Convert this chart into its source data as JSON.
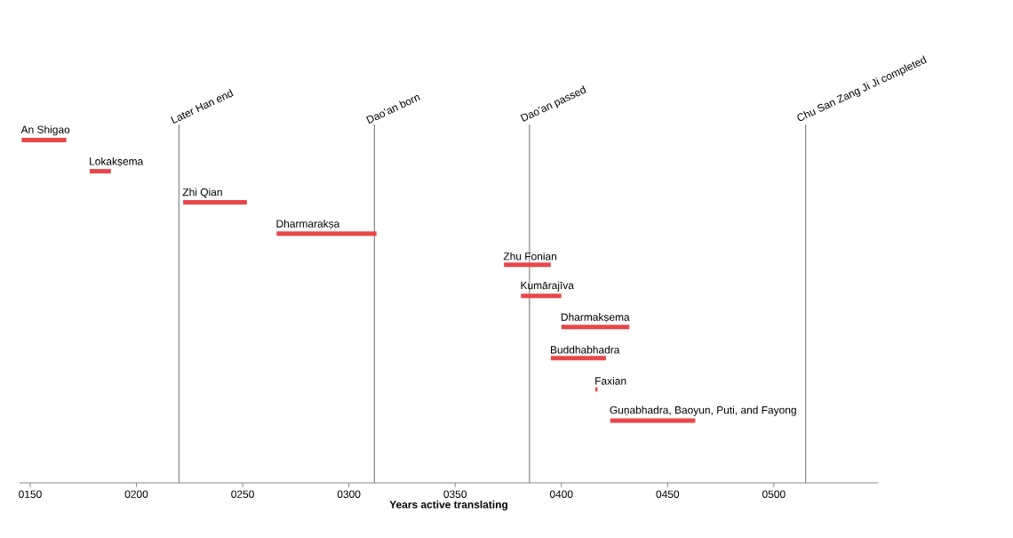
{
  "chart_data": {
    "type": "bar",
    "orientation": "horizontal",
    "xlabel": "Years active translating",
    "categories": [
      "An Shigao",
      "Lokakṣema",
      "Zhi Qian",
      "Dharmarakṣa",
      "Zhu Fonian",
      "Kumārajīva",
      "Dharmakṣema",
      "Buddhabhadra",
      "Faxian",
      "Guṇabhadra, Baoyun, Puti, and Fayong"
    ],
    "base": [
      146,
      178,
      222,
      266,
      373,
      381,
      400,
      395,
      416,
      423
    ],
    "values": [
      21,
      10,
      30,
      47,
      22,
      19,
      32,
      26,
      1,
      40
    ],
    "color": "#e8474a",
    "xlim": [
      145,
      549
    ],
    "xticks": [
      {
        "value": 150,
        "label": "0150"
      },
      {
        "value": 200,
        "label": "0200"
      },
      {
        "value": 250,
        "label": "0250"
      },
      {
        "value": 300,
        "label": "0300"
      },
      {
        "value": 350,
        "label": "0350"
      },
      {
        "value": 400,
        "label": "0400"
      },
      {
        "value": 450,
        "label": "0450"
      },
      {
        "value": 500,
        "label": "0500"
      }
    ],
    "ref_lines": [
      {
        "axis": "x",
        "value": 220,
        "label": "Later Han end",
        "color": "#6e6e6e"
      },
      {
        "axis": "x",
        "value": 312,
        "label": "Dao’an born",
        "color": "#6e6e6e"
      },
      {
        "axis": "x",
        "value": 385,
        "label": "Dao’an passed",
        "color": "#6e6e6e"
      },
      {
        "axis": "x",
        "value": 515,
        "label": "Chu San Zang Ji Ji completed",
        "color": "#6e6e6e"
      }
    ]
  }
}
